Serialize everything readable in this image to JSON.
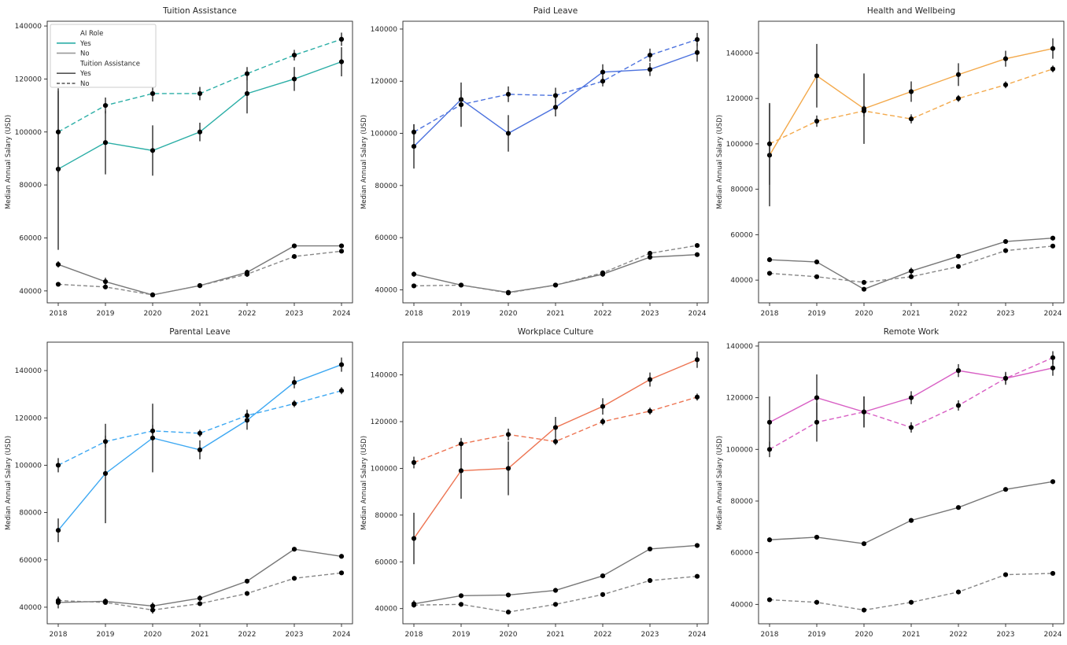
{
  "figure": {
    "background": "#ffffff",
    "ylabel": "Median Annual Salary (USD)",
    "x_tick_labels": [
      "2018",
      "2019",
      "2020",
      "2021",
      "2022",
      "2023",
      "2024"
    ],
    "y_tick_labels": [
      "40000",
      "60000",
      "80000",
      "100000",
      "120000",
      "140000"
    ],
    "gray_solid_color": "#777777",
    "gray_dashed_color": "#888888",
    "marker_color": "#000000",
    "errorbar_color": "#1a1a1a"
  },
  "legend": {
    "group1_title": "AI Role",
    "group1_items": [
      {
        "label": "Yes",
        "color": "#2BAEA6",
        "dash": "solid"
      },
      {
        "label": "No",
        "color": "#999999",
        "dash": "solid"
      }
    ],
    "group2_title": "Tuition Assistance",
    "group2_items": [
      {
        "label": "Yes",
        "color": "#555555",
        "dash": "solid"
      },
      {
        "label": "No",
        "color": "#555555",
        "dash": "dashed"
      }
    ]
  },
  "chart_data": [
    {
      "type": "line",
      "title": "Tuition Assistance",
      "slug": "tuition-assistance",
      "ylabel": "Median Annual Salary (USD)",
      "x": [
        2018,
        2019,
        2020,
        2021,
        2022,
        2023,
        2024
      ],
      "y_ticks": [
        40000,
        60000,
        80000,
        100000,
        120000,
        140000
      ],
      "ylim": [
        35500,
        141800
      ],
      "color": "#2BAEA6",
      "show_legend": true,
      "series": [
        {
          "name": "AI Yes / Benefit Yes",
          "style": "color-solid",
          "values": [
            86000,
            96000,
            93000,
            100000,
            114500,
            120000,
            126500
          ],
          "err": [
            30500,
            12000,
            9500,
            3500,
            7500,
            4500,
            5500
          ]
        },
        {
          "name": "AI Yes / Benefit No",
          "style": "color-dashed",
          "values": [
            100000,
            110000,
            114500,
            114500,
            122000,
            129000,
            135000
          ],
          "err": [
            15500,
            3000,
            3000,
            2500,
            2500,
            2000,
            2500
          ]
        },
        {
          "name": "AI No / Benefit Yes",
          "style": "gray-solid",
          "values": [
            50000,
            43500,
            38500,
            42000,
            47000,
            57000,
            57000
          ],
          "err": [
            1200,
            1500,
            800,
            800,
            1000,
            800,
            800
          ]
        },
        {
          "name": "AI No / Benefit No",
          "style": "gray-dashed",
          "values": [
            42500,
            41500,
            38500,
            42000,
            46300,
            53000,
            55000
          ],
          "err": [
            800,
            800,
            800,
            800,
            1000,
            800,
            800
          ]
        }
      ]
    },
    {
      "type": "line",
      "title": "Paid Leave",
      "slug": "paid-leave",
      "ylabel": "Median Annual Salary (USD)",
      "x": [
        2018,
        2019,
        2020,
        2021,
        2022,
        2023,
        2024
      ],
      "y_ticks": [
        40000,
        60000,
        80000,
        100000,
        120000,
        140000
      ],
      "ylim": [
        35000,
        143000
      ],
      "color": "#4C72DE",
      "show_legend": false,
      "series": [
        {
          "name": "AI Yes / Benefit Yes",
          "style": "color-solid",
          "values": [
            95000,
            113000,
            100000,
            110000,
            123500,
            124500,
            131000
          ],
          "err": [
            8500,
            3500,
            7000,
            3500,
            3000,
            2500,
            3500
          ]
        },
        {
          "name": "AI Yes / Benefit No",
          "style": "color-dashed",
          "values": [
            100500,
            111000,
            115000,
            114500,
            120000,
            130000,
            136000
          ],
          "err": [
            3000,
            8500,
            3000,
            3000,
            2000,
            2500,
            2500
          ]
        },
        {
          "name": "AI No / Benefit Yes",
          "style": "gray-solid",
          "values": [
            46000,
            41800,
            39000,
            41800,
            46000,
            52500,
            53500
          ],
          "err": [
            1000,
            800,
            800,
            800,
            1000,
            800,
            800
          ]
        },
        {
          "name": "AI No / Benefit No",
          "style": "gray-dashed",
          "values": [
            41500,
            41800,
            38800,
            41800,
            46500,
            54000,
            57000
          ],
          "err": [
            800,
            800,
            800,
            800,
            800,
            800,
            800
          ]
        }
      ]
    },
    {
      "type": "line",
      "title": "Health and Wellbeing",
      "slug": "health-and-wellbeing",
      "ylabel": "Median Annual Salary (USD)",
      "x": [
        2018,
        2019,
        2020,
        2021,
        2022,
        2023,
        2024
      ],
      "y_ticks": [
        40000,
        60000,
        80000,
        100000,
        120000,
        140000
      ],
      "ylim": [
        30000,
        154000
      ],
      "color": "#F3A94B",
      "show_legend": false,
      "series": [
        {
          "name": "AI Yes / Benefit Yes",
          "style": "color-solid",
          "values": [
            95000,
            130000,
            115500,
            123000,
            130500,
            137500,
            142000
          ],
          "err": [
            22500,
            14000,
            15500,
            4500,
            5000,
            3500,
            4500
          ]
        },
        {
          "name": "AI Yes / Benefit No",
          "style": "color-dashed",
          "values": [
            100000,
            110000,
            114500,
            111000,
            120000,
            126000,
            133000
          ],
          "err": [
            18000,
            2500,
            2500,
            2000,
            1500,
            1500,
            1500
          ]
        },
        {
          "name": "AI No / Benefit Yes",
          "style": "gray-solid",
          "values": [
            49000,
            48000,
            36000,
            44000,
            50500,
            57000,
            58500
          ],
          "err": [
            1000,
            800,
            800,
            1500,
            800,
            800,
            800
          ]
        },
        {
          "name": "AI No / Benefit No",
          "style": "gray-dashed",
          "values": [
            43000,
            41500,
            39000,
            41500,
            46000,
            53000,
            55000
          ],
          "err": [
            800,
            800,
            800,
            800,
            800,
            800,
            800
          ]
        }
      ]
    },
    {
      "type": "line",
      "title": "Parental Leave",
      "slug": "parental-leave",
      "ylabel": "Median Annual Salary (USD)",
      "x": [
        2018,
        2019,
        2020,
        2021,
        2022,
        2023,
        2024
      ],
      "y_ticks": [
        40000,
        60000,
        80000,
        100000,
        120000,
        140000
      ],
      "ylim": [
        33000,
        152000
      ],
      "color": "#3DA8F2",
      "show_legend": false,
      "series": [
        {
          "name": "AI Yes / Benefit Yes",
          "style": "color-solid",
          "values": [
            72500,
            96500,
            111500,
            106500,
            119000,
            135000,
            142500
          ],
          "err": [
            5000,
            21000,
            14500,
            4000,
            4000,
            2500,
            3000
          ]
        },
        {
          "name": "AI Yes / Benefit No",
          "style": "color-dashed",
          "values": [
            100000,
            110000,
            114500,
            113500,
            121000,
            126000,
            131500
          ],
          "err": [
            3000,
            2500,
            2500,
            1500,
            2500,
            1500,
            1500
          ]
        },
        {
          "name": "AI No / Benefit Yes",
          "style": "gray-solid",
          "values": [
            42000,
            42500,
            40500,
            43800,
            51000,
            64500,
            61500
          ],
          "err": [
            2500,
            1200,
            1500,
            1200,
            800,
            800,
            800
          ]
        },
        {
          "name": "AI No / Benefit No",
          "style": "gray-dashed",
          "values": [
            42800,
            42000,
            38800,
            41500,
            45800,
            52200,
            54500
          ],
          "err": [
            1500,
            800,
            1500,
            800,
            800,
            800,
            800
          ]
        }
      ]
    },
    {
      "type": "line",
      "title": "Workplace Culture",
      "slug": "workplace-culture",
      "ylabel": "Median Annual Salary (USD)",
      "x": [
        2018,
        2019,
        2020,
        2021,
        2022,
        2023,
        2024
      ],
      "y_ticks": [
        40000,
        60000,
        80000,
        100000,
        120000,
        140000
      ],
      "ylim": [
        33500,
        154000
      ],
      "color": "#ED7452",
      "show_legend": false,
      "series": [
        {
          "name": "AI Yes / Benefit Yes",
          "style": "color-solid",
          "values": [
            70000,
            99000,
            100000,
            117500,
            126500,
            138000,
            146500
          ],
          "err": [
            11000,
            12000,
            11500,
            4500,
            3500,
            3000,
            3500
          ]
        },
        {
          "name": "AI Yes / Benefit No",
          "style": "color-dashed",
          "values": [
            102500,
            110500,
            114500,
            111500,
            120000,
            124500,
            130500
          ],
          "err": [
            2500,
            2500,
            2500,
            1500,
            1500,
            1500,
            1500
          ]
        },
        {
          "name": "AI No / Benefit Yes",
          "style": "gray-solid",
          "values": [
            42000,
            45500,
            45800,
            47800,
            54000,
            65500,
            67000
          ],
          "err": [
            1500,
            800,
            800,
            800,
            800,
            800,
            800
          ]
        },
        {
          "name": "AI No / Benefit No",
          "style": "gray-dashed",
          "values": [
            41500,
            41800,
            38500,
            41800,
            46000,
            52000,
            53800
          ],
          "err": [
            1000,
            800,
            800,
            800,
            800,
            800,
            800
          ]
        }
      ]
    },
    {
      "type": "line",
      "title": "Remote Work",
      "slug": "remote-work",
      "ylabel": "Median Annual Salary (USD)",
      "x": [
        2018,
        2019,
        2020,
        2021,
        2022,
        2023,
        2024
      ],
      "y_ticks": [
        40000,
        60000,
        80000,
        100000,
        120000,
        140000
      ],
      "ylim": [
        32500,
        141500
      ],
      "color": "#D85FC4",
      "show_legend": false,
      "series": [
        {
          "name": "AI Yes / Benefit Yes",
          "style": "color-solid",
          "values": [
            110500,
            120000,
            114500,
            120000,
            130500,
            127500,
            131500
          ],
          "err": [
            10000,
            9000,
            6000,
            2500,
            2500,
            2500,
            3000
          ]
        },
        {
          "name": "AI Yes / Benefit No",
          "style": "color-dashed",
          "values": [
            100000,
            110500,
            114500,
            108500,
            117000,
            127500,
            135500
          ],
          "err": [
            3000,
            7500,
            6000,
            2000,
            2000,
            2000,
            2500
          ]
        },
        {
          "name": "AI No / Benefit Yes",
          "style": "gray-solid",
          "values": [
            65000,
            66000,
            63500,
            72500,
            77500,
            84500,
            87500
          ],
          "err": [
            600,
            600,
            600,
            600,
            600,
            600,
            600
          ]
        },
        {
          "name": "AI No / Benefit No",
          "style": "gray-dashed",
          "values": [
            41800,
            40800,
            37800,
            40800,
            44800,
            51500,
            52000
          ],
          "err": [
            600,
            600,
            600,
            600,
            600,
            600,
            600
          ]
        }
      ]
    }
  ]
}
